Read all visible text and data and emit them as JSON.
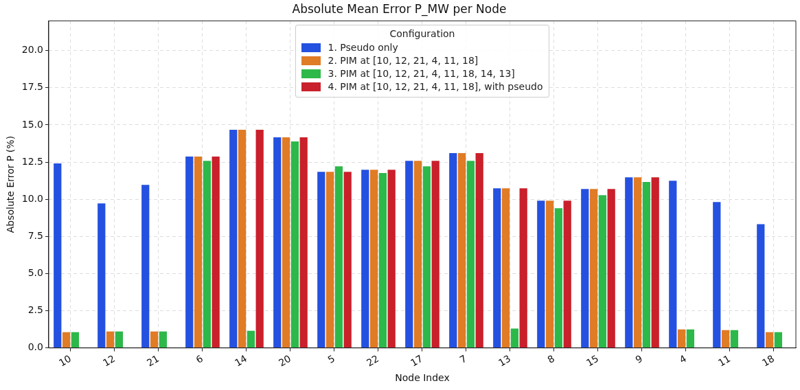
{
  "chart_data": {
    "type": "bar",
    "title": "Absolute Mean Error P_MW per Node",
    "xlabel": "Node Index",
    "ylabel": "Absolute Error P (%)",
    "legend_title": "Configuration",
    "legend": "top",
    "grid": true,
    "categories": [
      "10",
      "12",
      "21",
      "6",
      "14",
      "20",
      "5",
      "22",
      "17",
      "7",
      "13",
      "8",
      "15",
      "9",
      "4",
      "11",
      "18"
    ],
    "ylim": [
      0,
      22
    ],
    "yticks": [
      {
        "value": 0,
        "label": "0.0"
      },
      {
        "value": 2.5,
        "label": "2.5"
      },
      {
        "value": 5,
        "label": "5.0"
      },
      {
        "value": 7.5,
        "label": "7.5"
      },
      {
        "value": 10,
        "label": "10.0"
      },
      {
        "value": 12.5,
        "label": "12.5"
      },
      {
        "value": 15,
        "label": "15.0"
      },
      {
        "value": 17.5,
        "label": "17.5"
      },
      {
        "value": 20,
        "label": "20.0"
      }
    ],
    "series": [
      {
        "name": "1. Pseudo only",
        "color": "#2451e0",
        "values": [
          12.41,
          9.72,
          10.97,
          12.87,
          14.68,
          14.17,
          11.85,
          11.99,
          12.59,
          13.1,
          10.74,
          9.91,
          10.69,
          11.48,
          11.25,
          9.81,
          8.33
        ]
      },
      {
        "name": "2. PIM at [10, 12, 21, 4, 11, 18]",
        "color": "#e07b26",
        "values": [
          1.06,
          1.11,
          1.11,
          12.87,
          14.68,
          14.17,
          11.85,
          11.99,
          12.59,
          13.1,
          10.74,
          9.91,
          10.69,
          11.48,
          1.25,
          1.2,
          1.06
        ]
      },
      {
        "name": "3. PIM at [10, 12, 21, 4, 11, 18, 14, 13]",
        "color": "#2db84a",
        "values": [
          1.06,
          1.11,
          1.11,
          12.59,
          1.16,
          13.89,
          12.22,
          11.76,
          12.22,
          12.59,
          1.3,
          9.4,
          10.28,
          11.16,
          1.25,
          1.2,
          1.06
        ]
      },
      {
        "name": "4. PIM at [10, 12, 21, 4, 11, 18], with pseudo",
        "color": "#c9202b",
        "values": [
          null,
          null,
          null,
          12.87,
          14.68,
          14.17,
          11.85,
          11.99,
          12.59,
          13.1,
          10.74,
          9.91,
          10.69,
          11.48,
          null,
          null,
          null
        ]
      }
    ]
  }
}
